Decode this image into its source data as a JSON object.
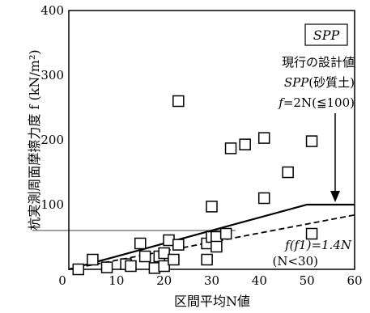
{
  "chart_data": {
    "type": "scatter",
    "panel_label": "SPP",
    "xlabel": "区間平均N値",
    "ylabel": "杭実測周面摩擦力度 f (kN/m²)",
    "xlim": [
      0,
      60
    ],
    "ylim": [
      0,
      400
    ],
    "x_ticks": [
      "0",
      "10",
      "20",
      "30",
      "40",
      "50",
      "60"
    ],
    "y_ticks": [
      "100",
      "200",
      "300",
      "400"
    ],
    "grid": false,
    "points": [
      {
        "x": 2,
        "y": 0
      },
      {
        "x": 5,
        "y": 15
      },
      {
        "x": 8,
        "y": 3
      },
      {
        "x": 12,
        "y": 8
      },
      {
        "x": 13,
        "y": 5
      },
      {
        "x": 15,
        "y": 40
      },
      {
        "x": 16,
        "y": 20
      },
      {
        "x": 18,
        "y": 2
      },
      {
        "x": 19,
        "y": 20
      },
      {
        "x": 20,
        "y": 25
      },
      {
        "x": 20,
        "y": 5
      },
      {
        "x": 21,
        "y": 45
      },
      {
        "x": 22,
        "y": 15
      },
      {
        "x": 23,
        "y": 260
      },
      {
        "x": 23,
        "y": 38
      },
      {
        "x": 29,
        "y": 40
      },
      {
        "x": 29,
        "y": 15
      },
      {
        "x": 30,
        "y": 97
      },
      {
        "x": 30,
        "y": 50
      },
      {
        "x": 31,
        "y": 50
      },
      {
        "x": 31,
        "y": 35
      },
      {
        "x": 33,
        "y": 55
      },
      {
        "x": 34,
        "y": 187
      },
      {
        "x": 37,
        "y": 193
      },
      {
        "x": 41,
        "y": 203
      },
      {
        "x": 41,
        "y": 110
      },
      {
        "x": 46,
        "y": 150
      },
      {
        "x": 51,
        "y": 198
      },
      {
        "x": 51,
        "y": 55
      }
    ],
    "lines": [
      {
        "name": "現行の設計値",
        "style": "solid",
        "points": [
          [
            0,
            0
          ],
          [
            50,
            100
          ],
          [
            60,
            100
          ]
        ]
      },
      {
        "name": "f(f1)=1.4N",
        "style": "dashed",
        "points": [
          [
            0,
            0
          ],
          [
            60,
            84
          ]
        ]
      }
    ],
    "reference_line_y": 60,
    "annotations": {
      "design_title": "現行の設計値",
      "design_sub_main": "SPP",
      "design_sub_paren": "(砂質土)",
      "design_formula_f": "f",
      "design_formula_rest": "=2N(≦100)",
      "fit_formula": "f(f1)=1.4N",
      "fit_condition": "(N<30)"
    }
  }
}
